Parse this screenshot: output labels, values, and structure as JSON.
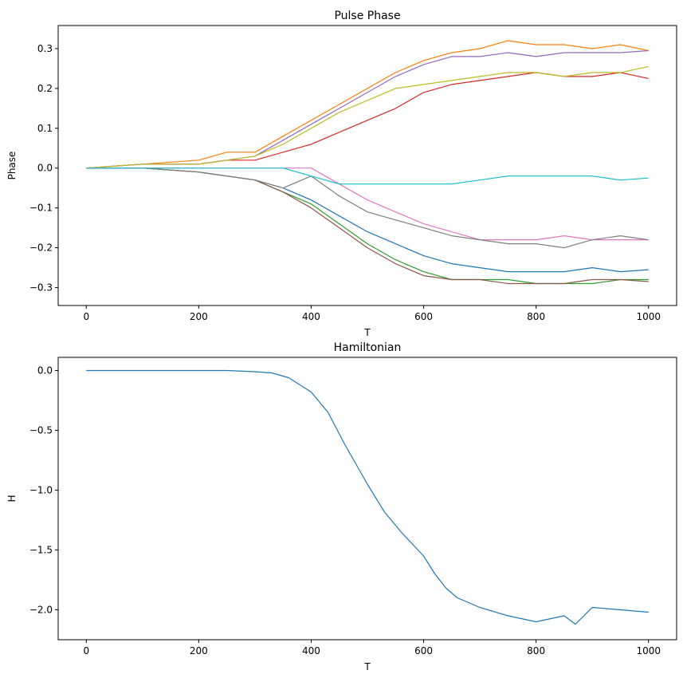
{
  "chart_data": [
    {
      "type": "line",
      "title": "Pulse Phase",
      "xlabel": "T",
      "ylabel": "Phase",
      "xlim": [
        -50,
        1050
      ],
      "ylim": [
        -0.345,
        0.358
      ],
      "xticks": [
        0,
        200,
        400,
        600,
        800,
        1000
      ],
      "xtick_labels": [
        "0",
        "200",
        "400",
        "600",
        "800",
        "1000"
      ],
      "yticks": [
        -0.3,
        -0.2,
        -0.1,
        0.0,
        0.1,
        0.2,
        0.3
      ],
      "ytick_labels": [
        "−0.3",
        "−0.2",
        "−0.1",
        "0.0",
        "0.1",
        "0.2",
        "0.3"
      ],
      "grid": false,
      "x": [
        0,
        100,
        200,
        250,
        300,
        350,
        400,
        450,
        500,
        550,
        600,
        650,
        700,
        750,
        800,
        850,
        900,
        950,
        1000
      ],
      "series": [
        {
          "color": "#1f77b4",
          "values": [
            0.0,
            0.0,
            -0.01,
            -0.02,
            -0.03,
            -0.05,
            -0.08,
            -0.12,
            -0.16,
            -0.19,
            -0.22,
            -0.24,
            -0.25,
            -0.26,
            -0.26,
            -0.26,
            -0.25,
            -0.26,
            -0.255
          ]
        },
        {
          "color": "#ff7f0e",
          "values": [
            0.0,
            0.01,
            0.02,
            0.04,
            0.04,
            0.08,
            0.12,
            0.16,
            0.2,
            0.24,
            0.27,
            0.29,
            0.3,
            0.32,
            0.31,
            0.31,
            0.3,
            0.31,
            0.295
          ]
        },
        {
          "color": "#2ca02c",
          "values": [
            0.0,
            0.0,
            -0.01,
            -0.02,
            -0.03,
            -0.06,
            -0.09,
            -0.14,
            -0.19,
            -0.23,
            -0.26,
            -0.28,
            -0.28,
            -0.28,
            -0.29,
            -0.29,
            -0.29,
            -0.28,
            -0.28
          ]
        },
        {
          "color": "#d62728",
          "values": [
            0.0,
            0.01,
            0.01,
            0.02,
            0.02,
            0.04,
            0.06,
            0.09,
            0.12,
            0.15,
            0.19,
            0.21,
            0.22,
            0.23,
            0.24,
            0.23,
            0.23,
            0.24,
            0.225
          ]
        },
        {
          "color": "#9467bd",
          "values": [
            0.0,
            0.01,
            0.01,
            0.02,
            0.03,
            0.07,
            0.11,
            0.15,
            0.19,
            0.23,
            0.26,
            0.28,
            0.28,
            0.29,
            0.28,
            0.29,
            0.29,
            0.29,
            0.295
          ]
        },
        {
          "color": "#8c564b",
          "values": [
            0.0,
            0.0,
            -0.01,
            -0.02,
            -0.03,
            -0.06,
            -0.1,
            -0.15,
            -0.2,
            -0.24,
            -0.27,
            -0.28,
            -0.28,
            -0.29,
            -0.29,
            -0.29,
            -0.28,
            -0.28,
            -0.285
          ]
        },
        {
          "color": "#e377c2",
          "values": [
            0.0,
            0.0,
            0.0,
            0.0,
            0.0,
            0.0,
            0.0,
            -0.04,
            -0.08,
            -0.11,
            -0.14,
            -0.16,
            -0.18,
            -0.18,
            -0.18,
            -0.17,
            -0.18,
            -0.18,
            -0.18
          ]
        },
        {
          "color": "#7f7f7f",
          "values": [
            0.0,
            0.0,
            -0.01,
            -0.02,
            -0.03,
            -0.05,
            -0.02,
            -0.07,
            -0.11,
            -0.13,
            -0.15,
            -0.17,
            -0.18,
            -0.19,
            -0.19,
            -0.2,
            -0.18,
            -0.17,
            -0.18
          ]
        },
        {
          "color": "#bcbd22",
          "values": [
            0.0,
            0.01,
            0.01,
            0.02,
            0.03,
            0.06,
            0.1,
            0.14,
            0.17,
            0.2,
            0.21,
            0.22,
            0.23,
            0.24,
            0.24,
            0.23,
            0.24,
            0.24,
            0.255
          ]
        },
        {
          "color": "#17becf",
          "values": [
            0.0,
            0.0,
            0.0,
            0.0,
            0.0,
            0.0,
            -0.02,
            -0.04,
            -0.04,
            -0.04,
            -0.04,
            -0.04,
            -0.03,
            -0.02,
            -0.02,
            -0.02,
            -0.02,
            -0.03,
            -0.025
          ]
        }
      ]
    },
    {
      "type": "line",
      "title": "Hamiltonian",
      "xlabel": "T",
      "ylabel": "H",
      "xlim": [
        -50,
        1050
      ],
      "ylim": [
        -2.25,
        0.11
      ],
      "xticks": [
        0,
        200,
        400,
        600,
        800,
        1000
      ],
      "xtick_labels": [
        "0",
        "200",
        "400",
        "600",
        "800",
        "1000"
      ],
      "yticks": [
        -2.0,
        -1.5,
        -1.0,
        -0.5,
        0.0
      ],
      "ytick_labels": [
        "−2.0",
        "−1.5",
        "−1.0",
        "−0.5",
        "0.0"
      ],
      "grid": false,
      "x": [
        0,
        100,
        200,
        250,
        300,
        330,
        360,
        400,
        430,
        460,
        500,
        530,
        560,
        580,
        600,
        620,
        640,
        660,
        700,
        750,
        800,
        850,
        870,
        900,
        950,
        1000
      ],
      "series": [
        {
          "color": "#1f77b4",
          "values": [
            0.0,
            0.0,
            0.0,
            0.0,
            -0.01,
            -0.02,
            -0.06,
            -0.18,
            -0.35,
            -0.62,
            -0.95,
            -1.18,
            -1.35,
            -1.45,
            -1.55,
            -1.7,
            -1.82,
            -1.9,
            -1.98,
            -2.05,
            -2.1,
            -2.05,
            -2.12,
            -1.98,
            -2.0,
            -2.02
          ]
        }
      ]
    }
  ]
}
